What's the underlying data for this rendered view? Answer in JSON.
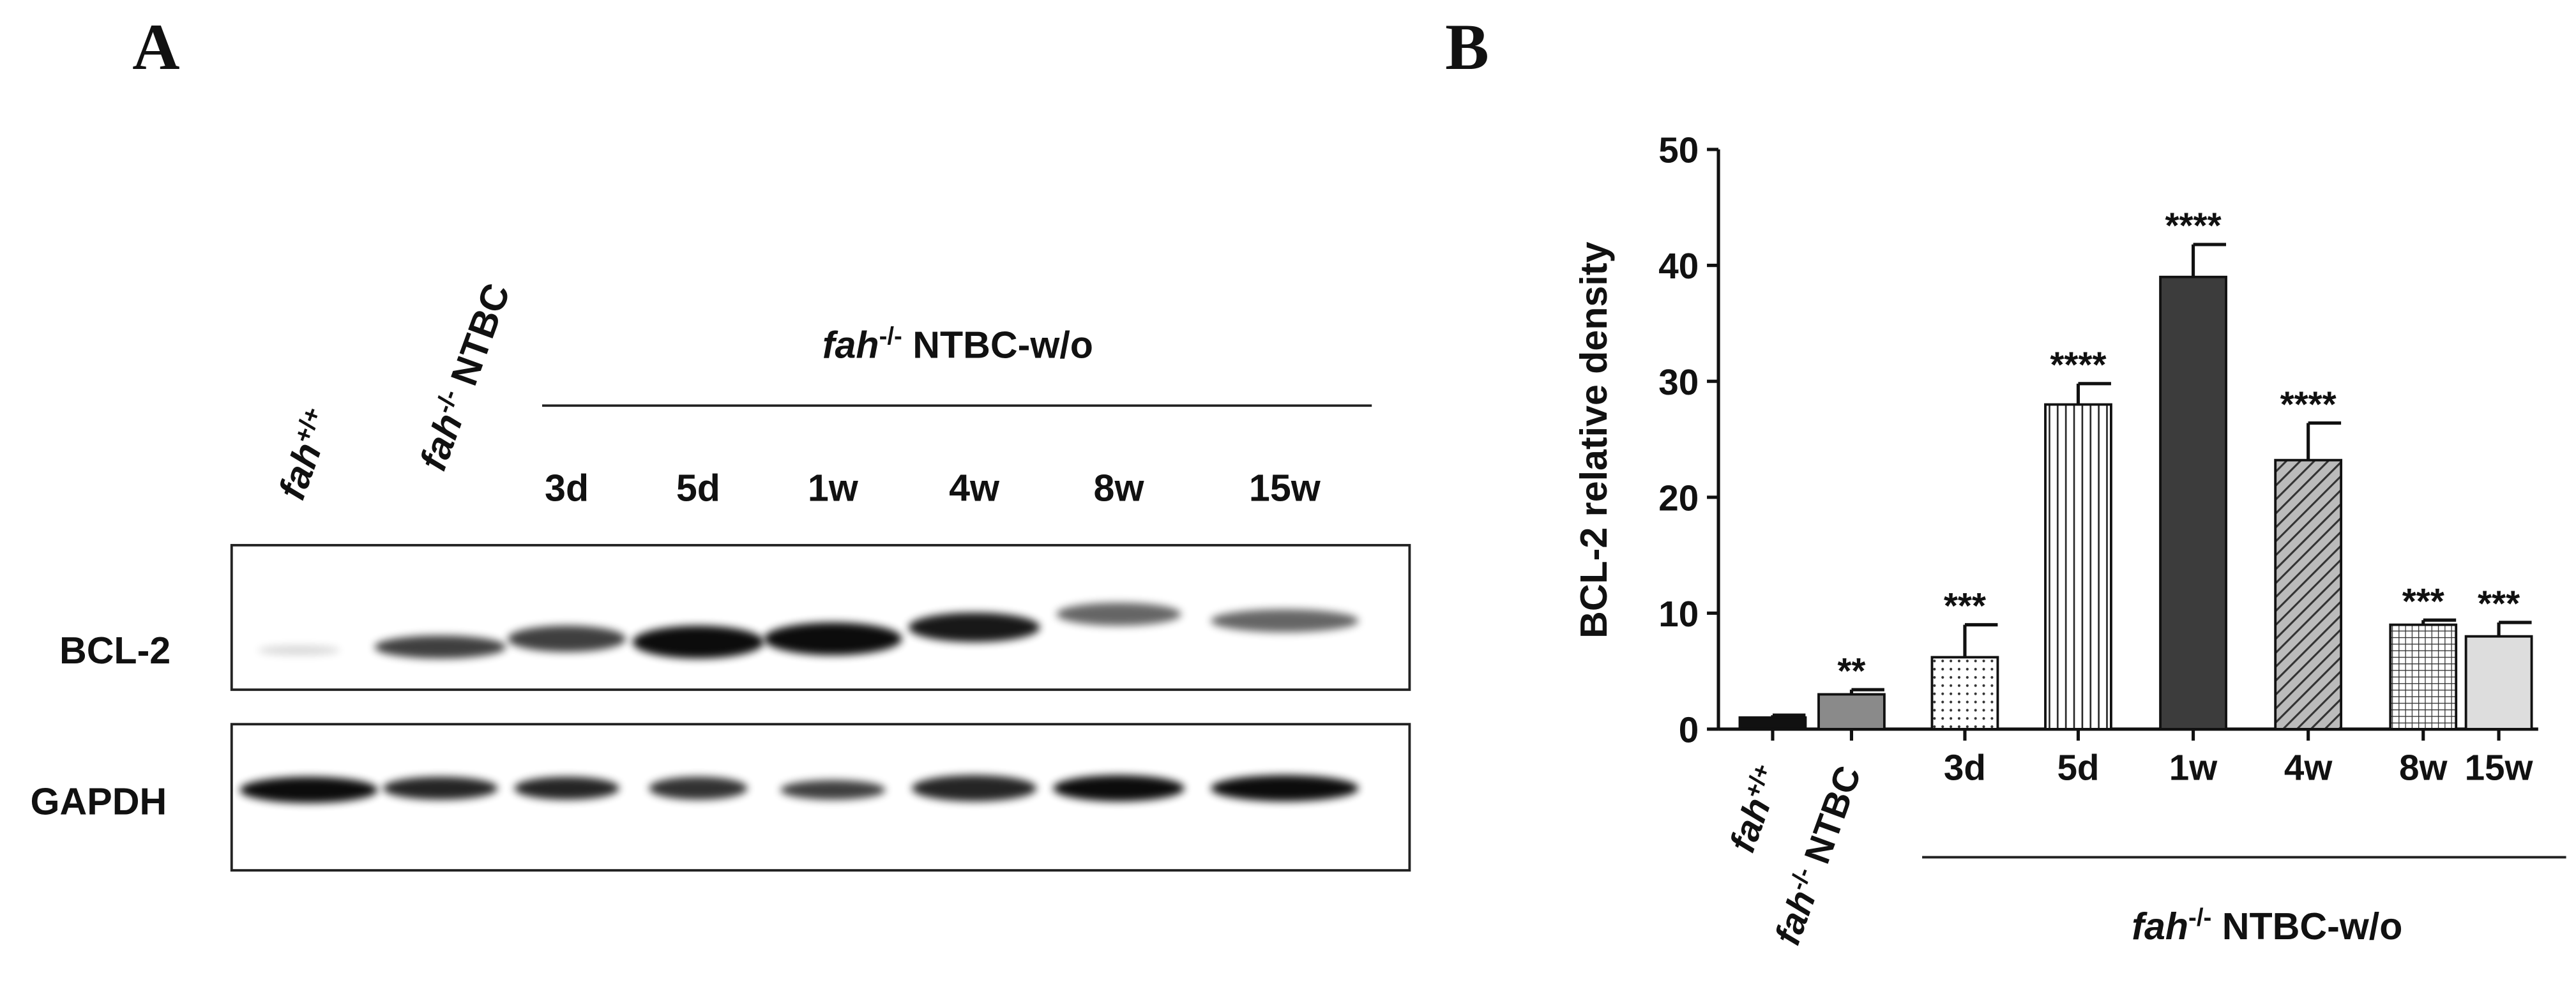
{
  "panel_a": {
    "panel_label": "A",
    "lane_labels": [
      {
        "italic": "fah",
        "sup": "+/+"
      },
      {
        "italic": "fah",
        "sup": "-/-",
        "text": " NTBC"
      }
    ],
    "group_label": {
      "italic": "fah",
      "sup": "-/-",
      "text": " NTBC-w/o"
    },
    "timepoints": [
      "3d",
      "5d",
      "1w",
      "4w",
      "8w",
      "15w"
    ],
    "rows": [
      "BCL-2",
      "GAPDH"
    ]
  },
  "chart_data": {
    "type": "bar",
    "panel_label": "B",
    "ylabel": "BCL-2 relative density",
    "categories": [
      {
        "italic": "fah",
        "sup": "+/+"
      },
      {
        "italic": "fah",
        "sup": "-/-",
        "text": " NTBC"
      },
      "3d",
      "5d",
      "1w",
      "4w",
      "8w",
      "15w"
    ],
    "group_label": {
      "italic": "fah",
      "sup": "-/-",
      "text": " NTBC-w/o"
    },
    "values": [
      1,
      3,
      6.2,
      28,
      39,
      23.2,
      9,
      8
    ],
    "errors": [
      0.2,
      0.4,
      2.8,
      1.8,
      2.8,
      3.2,
      0.4,
      1.2
    ],
    "significance": [
      null,
      "**",
      "***",
      "****",
      "****",
      "****",
      "***",
      "***"
    ],
    "colors": [
      "#111111",
      "#8a8a8a",
      "#ffffff",
      "#ffffff",
      "#3c3c3c",
      "#ffffff",
      "#ffffff",
      "#dddddd"
    ],
    "patterns": [
      "solid",
      "solid",
      "dots",
      "vlines",
      "solid",
      "hatch",
      "grid",
      "solid"
    ],
    "ylim": [
      0,
      50
    ],
    "yticks": [
      0,
      10,
      20,
      30,
      40,
      50
    ]
  }
}
